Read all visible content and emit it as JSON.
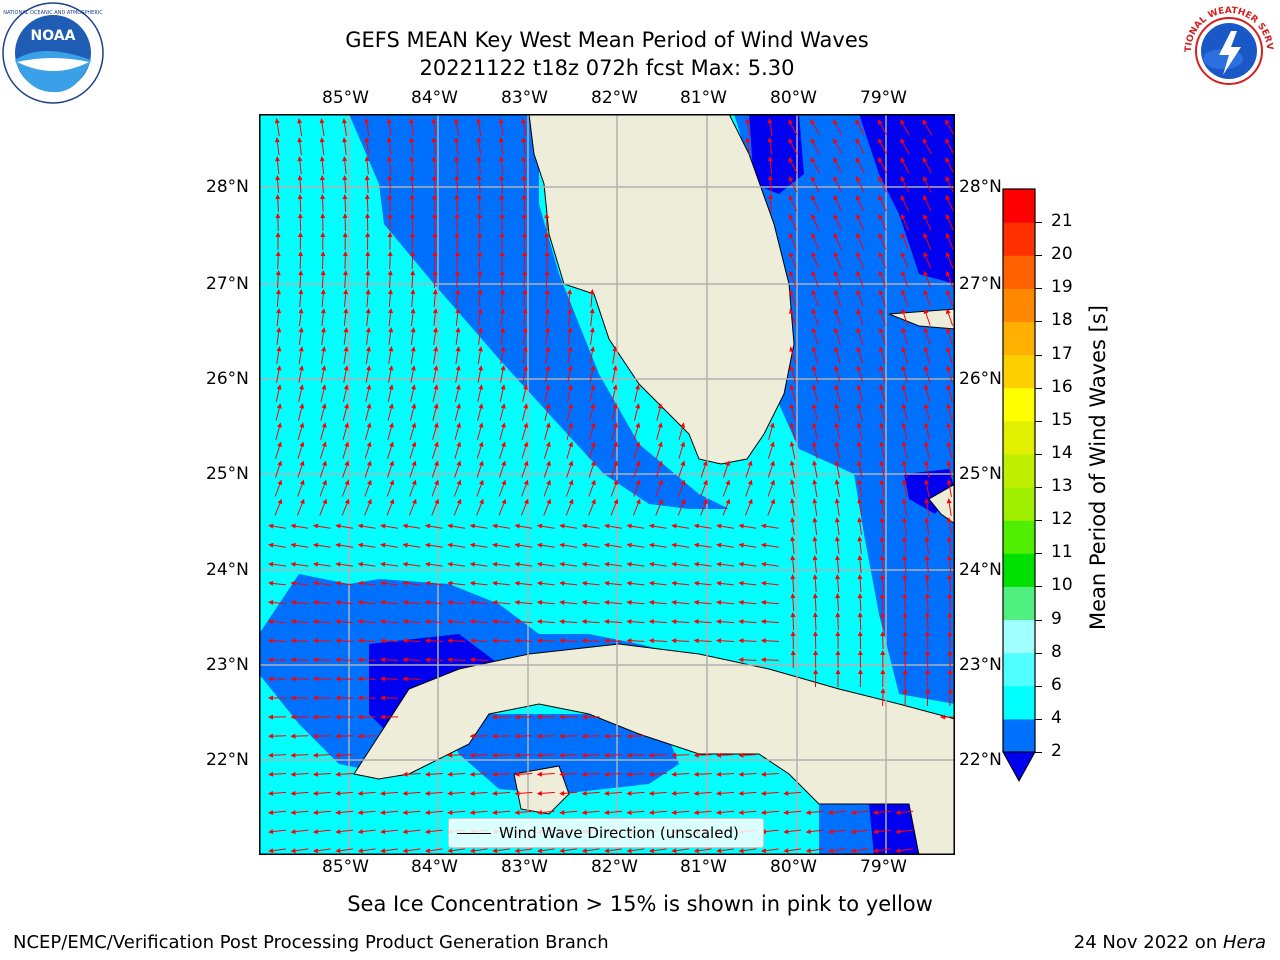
{
  "header": {
    "title_line1": "GEFS MEAN Key West Mean Period of Wind Waves",
    "title_line2": "20221122 t18z 072h fcst   Max: 5.30"
  },
  "logos": {
    "left": {
      "text": "NOAA",
      "icon": "noaa-logo"
    },
    "right": {
      "text": "NATIONAL WEATHER SERVICE",
      "icon": "nws-logo"
    }
  },
  "map": {
    "lon_labels": [
      "85°W",
      "84°W",
      "83°W",
      "82°W",
      "81°W",
      "80°W",
      "79°W"
    ],
    "lat_labels": [
      "28°N",
      "27°N",
      "26°N",
      "25°N",
      "24°N",
      "23°N",
      "22°N"
    ],
    "legend_label": "Wind Wave Direction (unscaled)",
    "colors": {
      "land": "#eeedda",
      "band_2_4": "#0070ff",
      "band_4_6": "#00ffff",
      "below_2": "#0000f0",
      "arrow": "#ff0000"
    }
  },
  "colorbar": {
    "label": "Mean Period of Wind Waves [s]",
    "ticks": [
      "2",
      "4",
      "6",
      "8",
      "9",
      "10",
      "11",
      "12",
      "13",
      "14",
      "15",
      "16",
      "17",
      "18",
      "19",
      "20",
      "21"
    ],
    "colors": [
      "#0070ff",
      "#00ffff",
      "#50ffff",
      "#a0ffff",
      "#50f080",
      "#00e000",
      "#50ee00",
      "#a0ee00",
      "#c0f000",
      "#e0f000",
      "#ffff00",
      "#ffd000",
      "#ffb000",
      "#ff8800",
      "#ff6000",
      "#ff3000",
      "#ff0000"
    ],
    "under_color": "#0000f0"
  },
  "footer": {
    "ice_note": "Sea Ice Concentration > 15% is shown in pink to yellow",
    "credit": "NCEP/EMC/Verification Post Processing Product Generation Branch",
    "date": "24 Nov 2022 on ",
    "host": "Hera"
  }
}
